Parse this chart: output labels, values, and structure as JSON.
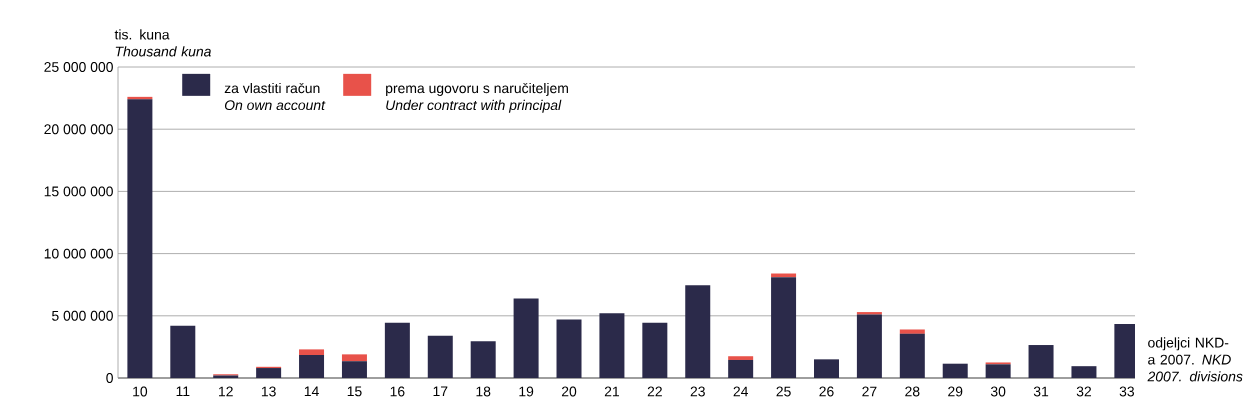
{
  "chart_data": {
    "type": "bar",
    "stacked": true,
    "ylabel": "tis. kuna *Thousand kuna*",
    "xlabel": "odjeljci NKD-a 2007. *NKD 2007. divisions*",
    "categories": [
      "10",
      "11",
      "12",
      "13",
      "14",
      "15",
      "16",
      "17",
      "18",
      "19",
      "20",
      "21",
      "22",
      "23",
      "24",
      "25",
      "26",
      "27",
      "28",
      "29",
      "30",
      "31",
      "32",
      "33"
    ],
    "series": [
      {
        "name": "za vlastiti račun *On own account*",
        "color": "#2b2a4a",
        "values": [
          22400000,
          4200000,
          200000,
          800000,
          1850000,
          1350000,
          4450000,
          3400000,
          2950000,
          6400000,
          4700000,
          5200000,
          4450000,
          7450000,
          1450000,
          8100000,
          1500000,
          5100000,
          3550000,
          1150000,
          1100000,
          2650000,
          950000,
          4350000
        ]
      },
      {
        "name": "prema ugovoru s naručiteljem *Under contract with principal*",
        "color": "#e8524a",
        "values": [
          200000,
          0,
          100000,
          100000,
          450000,
          550000,
          0,
          0,
          0,
          0,
          0,
          0,
          0,
          0,
          300000,
          300000,
          0,
          200000,
          350000,
          0,
          150000,
          0,
          0,
          0
        ]
      }
    ],
    "ylim": [
      0,
      25000000
    ],
    "yticks": [
      {
        "value": 0,
        "label": "0"
      },
      {
        "value": 5000000,
        "label": "5 000 000"
      },
      {
        "value": 10000000,
        "label": "10 000 000"
      },
      {
        "value": 15000000,
        "label": "15 000 000"
      },
      {
        "value": 20000000,
        "label": "20 000 000"
      },
      {
        "value": 25000000,
        "label": "25 000 000"
      }
    ],
    "grid": "y",
    "legend": "top left"
  }
}
